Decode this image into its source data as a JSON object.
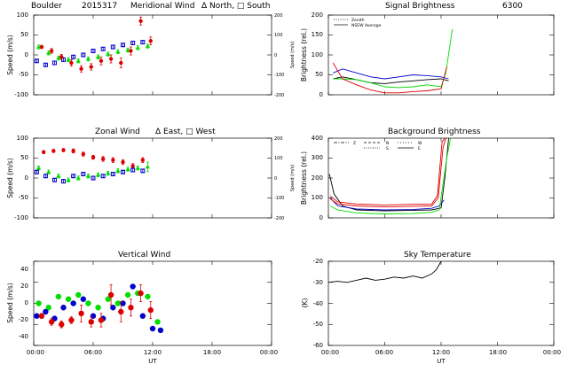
{
  "figure": {
    "site": "Boulder",
    "date": "2015317",
    "xlabel": "UT",
    "xticks": [
      "00:00",
      "06:00",
      "12:00",
      "18:00",
      "00:00"
    ]
  },
  "colors": {
    "north_east": "#00dd00",
    "south_west": "#0000cc",
    "zenith": "#dd0000",
    "black": "#000000"
  },
  "chart_data": [
    {
      "id": "meridional",
      "type": "scatter",
      "title": "Meridional Wind",
      "title_suffix": "Δ North, □ South",
      "ylabel": "Speed (m/s)",
      "ylabel_right": "Speed (m/s)",
      "ylim": [
        -100,
        100
      ],
      "yticks": [
        "-100",
        "-50",
        "0",
        "50",
        "100"
      ],
      "ylim_right": [
        -200,
        200
      ],
      "yticks_right": [
        "-200",
        "-100",
        "0",
        "100",
        "200"
      ],
      "xlim": [
        0,
        24
      ],
      "series": [
        {
          "color": "#00dd00",
          "marker": "triangle",
          "x": [
            0.5,
            1.5,
            2.5,
            3.5,
            4.5,
            5.5,
            6.5,
            7.5,
            8.5,
            9.5,
            10.5,
            11.5
          ],
          "y": [
            20,
            5,
            -8,
            -12,
            -15,
            -10,
            -5,
            2,
            8,
            12,
            18,
            22
          ],
          "err": [
            5,
            5,
            5,
            5,
            5,
            5,
            5,
            5,
            5,
            5,
            5,
            5
          ]
        },
        {
          "color": "#0000cc",
          "marker": "square",
          "x": [
            0.3,
            1.2,
            2.1,
            3.0,
            4.0,
            5.0,
            6.0,
            7.0,
            8.0,
            9.0,
            10.0,
            11.0
          ],
          "y": [
            -15,
            -25,
            -20,
            -12,
            -5,
            0,
            10,
            15,
            20,
            25,
            30,
            32
          ],
          "err": [
            4,
            4,
            4,
            4,
            4,
            4,
            4,
            4,
            4,
            4,
            4,
            4
          ]
        },
        {
          "color": "#dd0000",
          "marker": "circle",
          "x": [
            0.8,
            1.8,
            2.8,
            3.8,
            4.8,
            5.8,
            6.8,
            7.8,
            8.8,
            9.8,
            10.8,
            11.8
          ],
          "y": [
            20,
            10,
            -5,
            -20,
            -35,
            -30,
            -15,
            -10,
            -20,
            10,
            85,
            35
          ],
          "err": [
            4,
            6,
            6,
            8,
            8,
            8,
            10,
            10,
            12,
            10,
            10,
            10
          ]
        }
      ]
    },
    {
      "id": "signal",
      "type": "line",
      "title": "Signal Brightness",
      "title_suffix": "6300",
      "ylabel": "Brightness (rel.)",
      "ylim": [
        0,
        200
      ],
      "yticks": [
        "0",
        "50",
        "100",
        "150",
        "200"
      ],
      "xlim": [
        0,
        24
      ],
      "legend": [
        "Zenith",
        "NSEW Average"
      ],
      "legend_position": "top-left",
      "series": [
        {
          "color": "#0000cc",
          "x": [
            0.5,
            1.5,
            3,
            4.5,
            6,
            7.5,
            9,
            10.5,
            12,
            12.8
          ],
          "y": [
            55,
            65,
            55,
            45,
            40,
            45,
            50,
            48,
            45,
            40
          ]
        },
        {
          "color": "#000000",
          "x": [
            0.5,
            1.5,
            3,
            4.5,
            6,
            7.5,
            9,
            10.5,
            12,
            12.8
          ],
          "y": [
            40,
            45,
            38,
            30,
            28,
            32,
            35,
            38,
            40,
            35
          ]
        },
        {
          "color": "#00dd00",
          "x": [
            0.5,
            1.5,
            3,
            4.5,
            6,
            7.5,
            9,
            10.5,
            12,
            12.5,
            13.2
          ],
          "y": [
            40,
            40,
            38,
            30,
            20,
            18,
            20,
            25,
            20,
            55,
            165
          ]
        },
        {
          "color": "#dd0000",
          "x": [
            0.5,
            1.5,
            3,
            4.5,
            6,
            7.5,
            9,
            10.5,
            12,
            12.6
          ],
          "y": [
            80,
            40,
            25,
            12,
            5,
            5,
            8,
            10,
            15,
            70
          ]
        }
      ]
    },
    {
      "id": "zonal",
      "type": "scatter",
      "title": "Zonal Wind",
      "title_suffix": "Δ East, □ West",
      "ylabel": "Speed (m/s)",
      "ylabel_right": "Speed (m/s)",
      "ylim": [
        -100,
        100
      ],
      "yticks": [
        "-100",
        "-50",
        "0",
        "50",
        "100"
      ],
      "ylim_right": [
        -200,
        200
      ],
      "yticks_right": [
        "-200",
        "-100",
        "0",
        "100",
        "200"
      ],
      "xlim": [
        0,
        24
      ],
      "series": [
        {
          "color": "#dd0000",
          "marker": "circle",
          "x": [
            1,
            2,
            3,
            4,
            5,
            6,
            7,
            8,
            9,
            10,
            11
          ],
          "y": [
            65,
            68,
            70,
            68,
            60,
            52,
            48,
            45,
            40,
            30,
            45
          ],
          "err": [
            4,
            4,
            4,
            5,
            5,
            5,
            6,
            6,
            6,
            6,
            6
          ]
        },
        {
          "color": "#00dd00",
          "marker": "triangle",
          "x": [
            0.5,
            1.5,
            2.5,
            3.5,
            4.5,
            5.5,
            6.5,
            7.5,
            8.5,
            9.5,
            10.5,
            11.5
          ],
          "y": [
            25,
            15,
            5,
            -5,
            0,
            5,
            8,
            12,
            18,
            22,
            25,
            28
          ],
          "err": [
            5,
            5,
            5,
            5,
            5,
            5,
            5,
            5,
            5,
            5,
            5,
            12
          ]
        },
        {
          "color": "#0000cc",
          "marker": "square",
          "x": [
            0.3,
            1.2,
            2.1,
            3.0,
            4.0,
            5.0,
            6.0,
            7.0,
            8.0,
            9.0,
            10.0,
            11.0
          ],
          "y": [
            15,
            5,
            -5,
            -8,
            5,
            10,
            0,
            5,
            10,
            15,
            20,
            18
          ],
          "err": [
            4,
            4,
            4,
            4,
            4,
            4,
            4,
            4,
            4,
            4,
            4,
            4
          ]
        }
      ]
    },
    {
      "id": "background",
      "type": "line",
      "title": "Background Brightness",
      "ylabel": "Brightness (rel.)",
      "ylim": [
        0,
        400
      ],
      "yticks": [
        "0",
        "100",
        "200",
        "300",
        "400"
      ],
      "xlim": [
        0,
        24
      ],
      "legend": [
        "Z",
        "N",
        "S",
        "W",
        "E"
      ],
      "legend_position": "top",
      "series": [
        {
          "color": "#000000",
          "x": [
            0.1,
            0.6,
            1.5,
            3,
            6,
            9,
            11,
            12,
            12.4,
            12.8
          ],
          "y": [
            220,
            120,
            60,
            40,
            35,
            38,
            40,
            50,
            200,
            400
          ]
        },
        {
          "color": "#0000cc",
          "x": [
            0.2,
            1,
            3,
            6,
            9,
            11,
            11.8,
            12.3
          ],
          "y": [
            100,
            60,
            45,
            40,
            42,
            48,
            60,
            90
          ]
        },
        {
          "color": "#00dd00",
          "x": [
            0.2,
            1,
            3,
            6,
            9,
            11,
            11.8,
            12.6,
            13
          ],
          "y": [
            60,
            40,
            25,
            20,
            22,
            28,
            40,
            300,
            400
          ]
        },
        {
          "color": "#dd0000",
          "x": [
            0.2,
            1,
            3,
            6,
            9,
            11,
            11.6,
            12.1,
            12.4
          ],
          "y": [
            110,
            80,
            70,
            65,
            68,
            70,
            110,
            380,
            400
          ]
        },
        {
          "color": "#dd0000",
          "x": [
            0.2,
            1,
            3,
            6,
            9,
            11,
            11.7,
            12.2,
            12.5
          ],
          "y": [
            95,
            70,
            60,
            55,
            58,
            60,
            100,
            350,
            400
          ]
        }
      ]
    },
    {
      "id": "vertical",
      "type": "scatter",
      "title": "Vertical Wind",
      "ylabel": "Speed (m/s)",
      "ylim": [
        -50,
        50
      ],
      "yticks": [
        "-40",
        "-20",
        "0",
        "20",
        "40"
      ],
      "xlim": [
        0,
        24
      ],
      "series": [
        {
          "color": "#00dd00",
          "marker": "circle",
          "x": [
            0.5,
            1.5,
            2.5,
            3.5,
            4.5,
            5.5,
            6.5,
            7.5,
            8.5,
            9.5,
            10.5,
            11.5,
            12.5
          ],
          "y": [
            0,
            -5,
            8,
            5,
            10,
            0,
            -5,
            5,
            0,
            10,
            12,
            8,
            -22
          ],
          "err": [
            0,
            0,
            0,
            0,
            0,
            0,
            0,
            0,
            0,
            0,
            0,
            0,
            0
          ]
        },
        {
          "color": "#0000cc",
          "marker": "circle",
          "x": [
            0.3,
            1.2,
            2.1,
            3.0,
            4.0,
            5.0,
            6.0,
            7.0,
            8.0,
            9.0,
            10.0,
            11.0,
            12.0,
            12.8
          ],
          "y": [
            -15,
            -10,
            -18,
            -5,
            0,
            5,
            -15,
            -18,
            -5,
            0,
            20,
            -15,
            -30,
            -32
          ],
          "err": [
            0,
            0,
            0,
            0,
            0,
            0,
            0,
            0,
            0,
            0,
            0,
            0,
            0,
            0
          ]
        },
        {
          "color": "#dd0000",
          "marker": "circle",
          "x": [
            0.8,
            1.8,
            2.8,
            3.8,
            4.8,
            5.8,
            6.8,
            7.8,
            8.8,
            9.8,
            10.8,
            11.8
          ],
          "y": [
            -15,
            -22,
            -25,
            -20,
            -12,
            -22,
            -20,
            10,
            -10,
            -5,
            12,
            -8
          ],
          "err": [
            3,
            4,
            4,
            4,
            10,
            6,
            8,
            12,
            12,
            10,
            10,
            10
          ]
        }
      ]
    },
    {
      "id": "skytemp",
      "type": "line",
      "title": "Sky Temperature",
      "ylabel": "(K)",
      "ylim": [
        -60,
        -20
      ],
      "yticks": [
        "-60",
        "-50",
        "-40",
        "-30",
        "-20"
      ],
      "xlim": [
        0,
        24
      ],
      "series": [
        {
          "color": "#000000",
          "x": [
            0,
            1,
            2,
            3,
            4,
            5,
            6,
            7,
            8,
            9,
            10,
            11,
            11.5,
            12
          ],
          "y": [
            -30,
            -29.5,
            -30,
            -29,
            -28,
            -29,
            -28.5,
            -27.5,
            -28,
            -27,
            -28,
            -26,
            -24,
            -20
          ]
        }
      ]
    }
  ]
}
